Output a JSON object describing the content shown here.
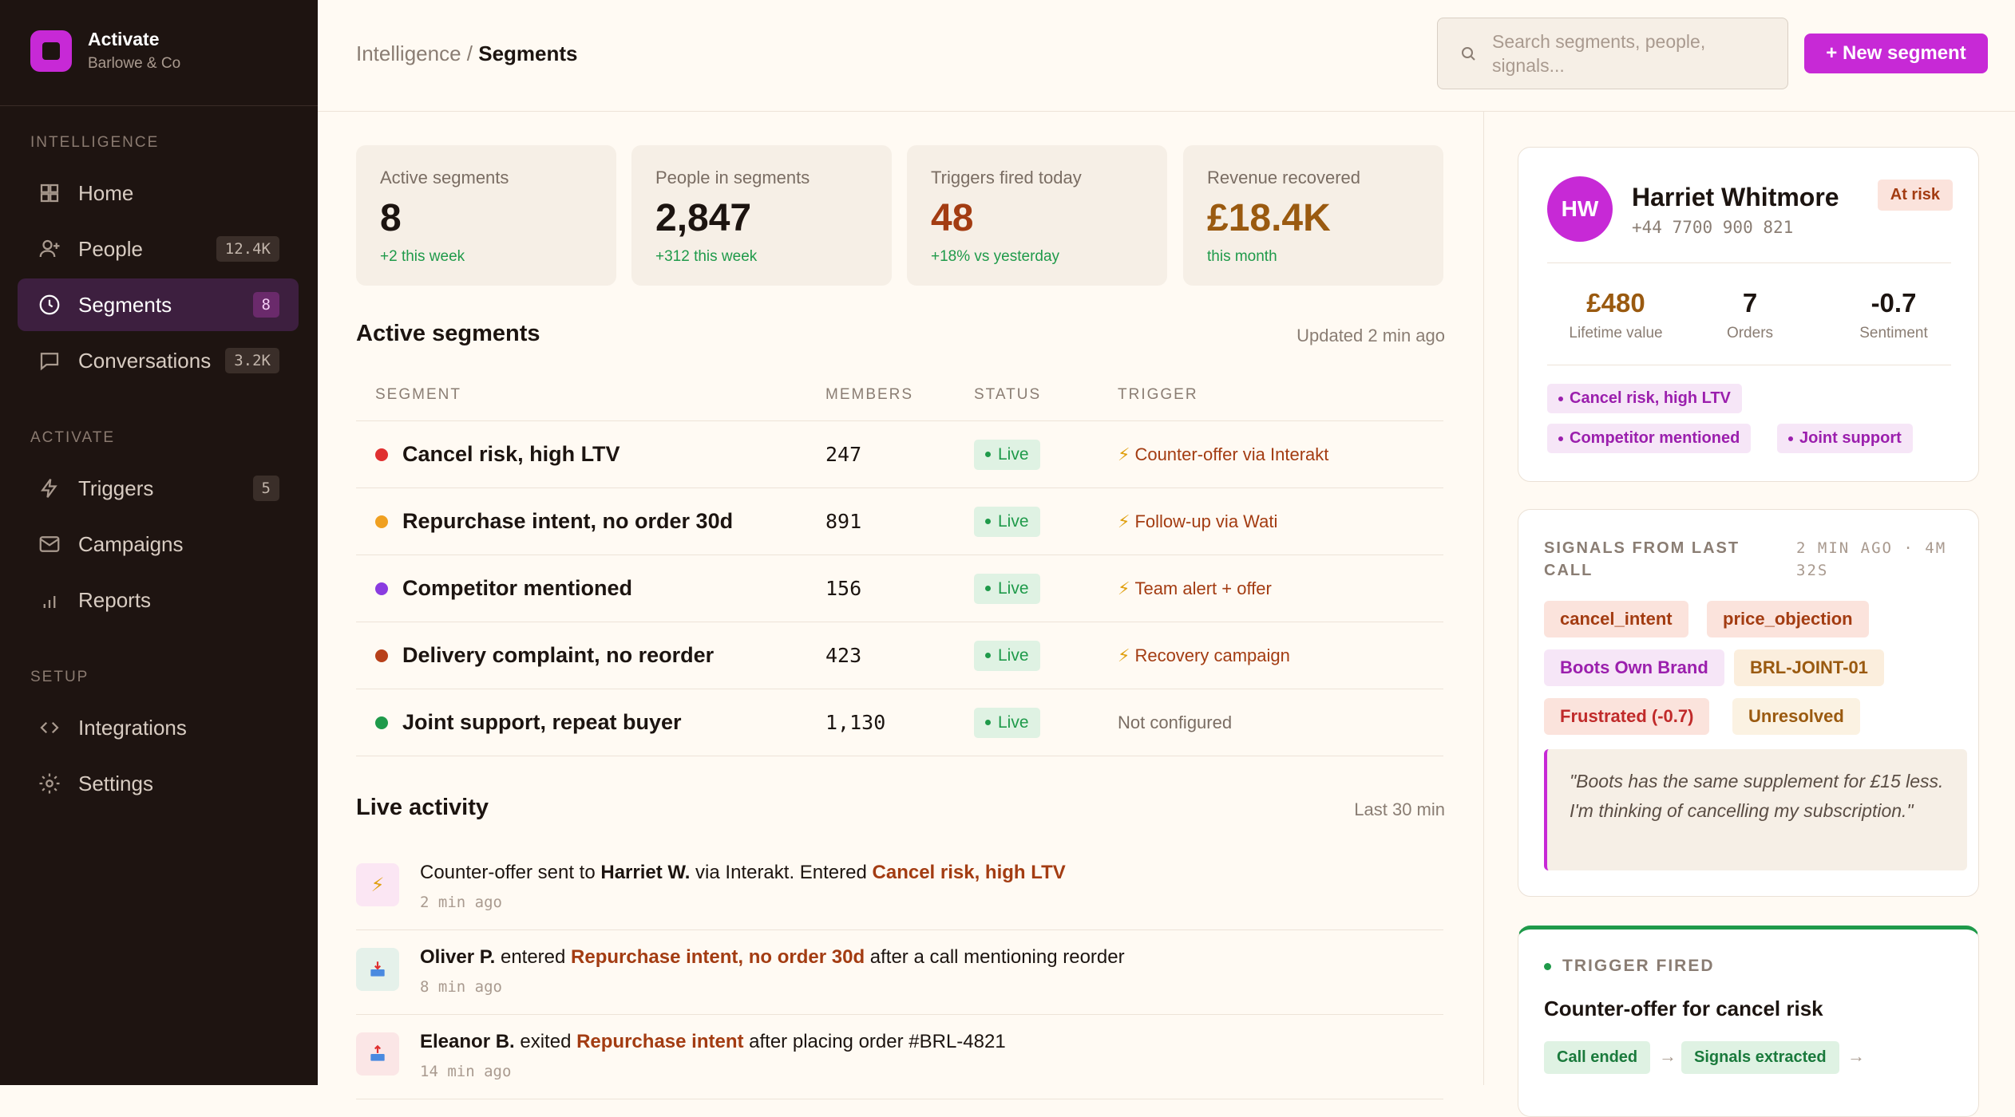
{
  "brand": {
    "name": "Activate",
    "subtitle": "Barlowe & Co"
  },
  "nav": {
    "sections": {
      "intelligence": "INTELLIGENCE",
      "activate": "ACTIVATE",
      "setup": "SETUP"
    },
    "items": [
      {
        "label": "Home",
        "icon": "grid-icon"
      },
      {
        "label": "People",
        "icon": "user-plus-icon",
        "badge": "12.4K"
      },
      {
        "label": "Segments",
        "icon": "clock-icon",
        "badge": "8",
        "active": true
      },
      {
        "label": "Conversations",
        "icon": "chat-icon",
        "badge": "3.2K"
      },
      {
        "label": "Triggers",
        "icon": "bolt-icon",
        "badge": "5"
      },
      {
        "label": "Campaigns",
        "icon": "mail-icon"
      },
      {
        "label": "Reports",
        "icon": "bars-icon"
      },
      {
        "label": "Integrations",
        "icon": "code-icon"
      },
      {
        "label": "Settings",
        "icon": "gear-icon"
      }
    ]
  },
  "header": {
    "breadcrumb_parent": "Intelligence",
    "breadcrumb_sep": "/",
    "breadcrumb_current": "Segments",
    "search_placeholder": "Search segments, people, signals...",
    "new_button": "+ New segment"
  },
  "stats": [
    {
      "label": "Active segments",
      "value": "8",
      "sub": "+2 this week",
      "color": "#1c1410"
    },
    {
      "label": "People in segments",
      "value": "2,847",
      "sub": "+312 this week",
      "color": "#1c1410"
    },
    {
      "label": "Triggers fired today",
      "value": "48",
      "sub": "+18% vs yesterday",
      "color": "#a33c12"
    },
    {
      "label": "Revenue recovered",
      "value": "£18.4K",
      "sub": "this month",
      "color": "#9a5a10"
    }
  ],
  "segments_section": {
    "title": "Active segments",
    "meta": "Updated 2 min ago",
    "columns": [
      "SEGMENT",
      "MEMBERS",
      "STATUS",
      "TRIGGER"
    ],
    "rows": [
      {
        "name": "Cancel risk, high LTV",
        "members": "247",
        "status": "Live",
        "trigger": "Counter-offer via Interakt",
        "dot": "#e03030",
        "configured": true
      },
      {
        "name": "Repurchase intent, no order 30d",
        "members": "891",
        "status": "Live",
        "trigger": "Follow-up via Wati",
        "dot": "#f0a020",
        "configured": true
      },
      {
        "name": "Competitor mentioned",
        "members": "156",
        "status": "Live",
        "trigger": "Team alert + offer",
        "dot": "#8a3ce0",
        "configured": true
      },
      {
        "name": "Delivery complaint, no reorder",
        "members": "423",
        "status": "Live",
        "trigger": "Recovery campaign",
        "dot": "#b8401a",
        "configured": true
      },
      {
        "name": "Joint support, repeat buyer",
        "members": "1,130",
        "status": "Live",
        "trigger": "Not configured",
        "dot": "#1f9a4a",
        "configured": false
      }
    ]
  },
  "activity": {
    "title": "Live activity",
    "meta": "Last 30 min",
    "items": [
      {
        "icon": "bolt-icon",
        "pre": "Counter-offer sent to ",
        "bold": "Harriet W.",
        "mid": " via Interakt. Entered ",
        "link": "Cancel risk, high LTV",
        "post": "",
        "time": "2 min ago",
        "bg": "#fbe6f3"
      },
      {
        "icon": "inbox-icon",
        "pre": "",
        "bold": "Oliver P.",
        "mid": " entered ",
        "link": "Repurchase intent, no order 30d",
        "post": " after a call mentioning reorder",
        "time": "8 min ago",
        "bg": "#e5f1ea"
      },
      {
        "icon": "outbox-icon",
        "pre": "",
        "bold": "Eleanor B.",
        "mid": " exited ",
        "link": "Repurchase intent",
        "post": " after placing order #BRL-4821",
        "time": "14 min ago",
        "bg": "#fbe6e6"
      }
    ]
  },
  "person": {
    "initials": "HW",
    "name": "Harriet Whitmore",
    "phone": "+44 7700 900 821",
    "badge": "At risk",
    "metrics": [
      {
        "value": "£480",
        "label": "Lifetime value",
        "color": "#9a5a10"
      },
      {
        "value": "7",
        "label": "Orders",
        "color": "#1c1410"
      },
      {
        "value": "-0.7",
        "label": "Sentiment",
        "color": "#1c1410"
      }
    ],
    "tags": [
      "Cancel risk, high LTV",
      "Competitor mentioned",
      "Joint support"
    ]
  },
  "signals": {
    "title": "SIGNALS FROM LAST CALL",
    "meta": "2 MIN AGO · 4M 32S",
    "chips": [
      {
        "label": "cancel_intent",
        "bg": "#fbe3dc",
        "fg": "#a33c12"
      },
      {
        "label": "price_objection",
        "bg": "#fbe3dc",
        "fg": "#a33c12"
      },
      {
        "label": "Boots Own Brand",
        "bg": "#f6e6f7",
        "fg": "#9b1fad"
      },
      {
        "label": "BRL-JOINT-01",
        "bg": "#fbeedd",
        "fg": "#9a5a10"
      },
      {
        "label": "Frustrated (-0.7)",
        "bg": "#fbe3dc",
        "fg": "#c02a2a"
      },
      {
        "label": "Unresolved",
        "bg": "#fbf2e2",
        "fg": "#9a5a10"
      }
    ],
    "quote": "\"Boots has the same supplement for £15 less. I'm thinking of cancelling my subscription.\""
  },
  "trigger_card": {
    "head": "TRIGGER FIRED",
    "title": "Counter-offer for cancel risk",
    "steps": [
      "Call ended",
      "Signals extracted"
    ],
    "arrow": "→"
  }
}
